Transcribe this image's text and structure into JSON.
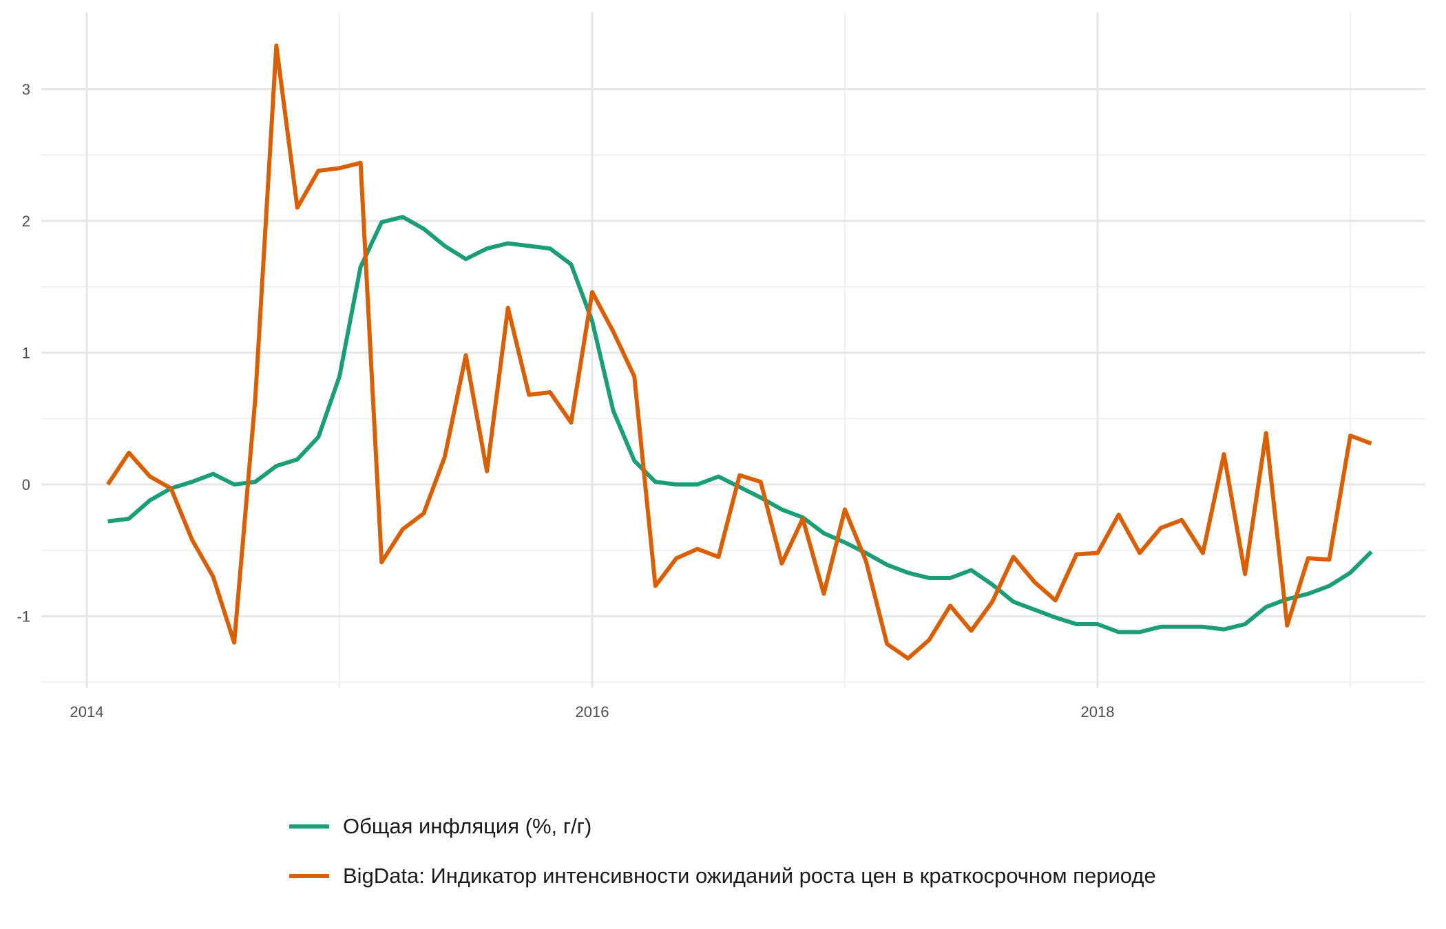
{
  "chart_data": {
    "type": "line",
    "title": "",
    "xlabel": "",
    "ylabel": "",
    "x_ticks": [
      "2014",
      "2016",
      "2018"
    ],
    "y_ticks": [
      "-1",
      "0",
      "1",
      "2",
      "3"
    ],
    "xlim": [
      "2013-10",
      "2019-07"
    ],
    "ylim": [
      -1.5,
      3.5
    ],
    "grid": true,
    "legend_position": "bottom",
    "x": [
      "2014-02",
      "2014-03",
      "2014-04",
      "2014-05",
      "2014-06",
      "2014-07",
      "2014-08",
      "2014-09",
      "2014-10",
      "2014-11",
      "2014-12",
      "2015-01",
      "2015-02",
      "2015-03",
      "2015-04",
      "2015-05",
      "2015-06",
      "2015-07",
      "2015-08",
      "2015-09",
      "2015-10",
      "2015-11",
      "2015-12",
      "2016-01",
      "2016-02",
      "2016-03",
      "2016-04",
      "2016-05",
      "2016-06",
      "2016-07",
      "2016-08",
      "2016-09",
      "2016-10",
      "2016-11",
      "2016-12",
      "2017-01",
      "2017-02",
      "2017-03",
      "2017-04",
      "2017-05",
      "2017-06",
      "2017-07",
      "2017-08",
      "2017-09",
      "2017-10",
      "2017-11",
      "2017-12",
      "2018-01",
      "2018-02",
      "2018-03",
      "2018-04",
      "2018-05",
      "2018-06",
      "2018-07",
      "2018-08",
      "2018-09",
      "2018-10",
      "2018-11",
      "2018-12",
      "2019-01",
      "2019-02",
      "2019-03"
    ],
    "series": [
      {
        "name": "Общая инфляция (%, г/г)",
        "color": "#1b9e77",
        "values": [
          -0.28,
          -0.26,
          -0.12,
          -0.03,
          0.02,
          0.08,
          0.0,
          0.02,
          0.14,
          0.19,
          0.36,
          0.82,
          1.65,
          1.99,
          2.03,
          1.94,
          1.81,
          1.71,
          1.79,
          1.83,
          1.81,
          1.79,
          1.67,
          1.24,
          0.56,
          0.18,
          0.02,
          0.0,
          0.0,
          0.06,
          -0.02,
          -0.1,
          -0.19,
          -0.25,
          -0.37,
          -0.44,
          -0.52,
          -0.61,
          -0.67,
          -0.71,
          -0.71,
          -0.65,
          -0.76,
          -0.89,
          -0.95,
          -1.01,
          -1.06,
          -1.06,
          -1.12,
          -1.12,
          -1.08,
          -1.08,
          -1.08,
          -1.1,
          -1.06,
          -0.93,
          -0.87,
          -0.83,
          -0.77,
          -0.67,
          -0.51,
          null
        ]
      },
      {
        "name": "BigData: Индикатор интенсивности ожиданий роста цен в краткосрочном периоде",
        "color": "#d95f02",
        "values": [
          0.0,
          0.24,
          0.06,
          -0.03,
          -0.42,
          -0.7,
          -1.2,
          0.65,
          3.33,
          2.1,
          2.38,
          2.4,
          2.44,
          -0.59,
          -0.34,
          -0.22,
          0.21,
          0.98,
          0.1,
          1.34,
          0.68,
          0.7,
          0.47,
          1.46,
          1.16,
          0.82,
          -0.77,
          -0.56,
          -0.49,
          -0.55,
          0.07,
          0.02,
          -0.6,
          -0.26,
          -0.83,
          -0.19,
          -0.58,
          -1.21,
          -1.32,
          -1.18,
          -0.92,
          -1.11,
          -0.89,
          -0.55,
          -0.74,
          -0.88,
          -0.53,
          -0.52,
          -0.23,
          -0.52,
          -0.33,
          -0.27,
          -0.52,
          0.23,
          -0.68,
          0.39,
          -1.07,
          -0.56,
          -0.57,
          0.37,
          0.31,
          null
        ]
      }
    ]
  },
  "legend": {
    "items": [
      {
        "label": "Общая инфляция (%, г/г)",
        "color": "#1b9e77"
      },
      {
        "label": "BigData: Индикатор интенсивности ожиданий роста цен в краткосрочном периоде",
        "color": "#d95f02"
      }
    ]
  }
}
